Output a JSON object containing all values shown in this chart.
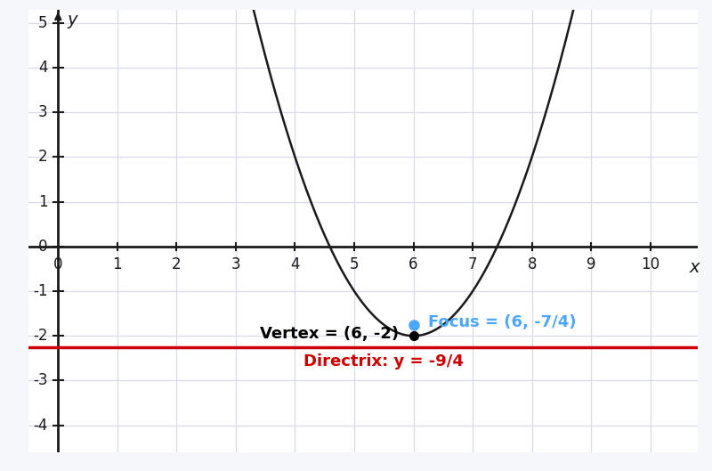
{
  "xlim": [
    -0.5,
    10.8
  ],
  "ylim": [
    -4.6,
    5.3
  ],
  "xticks": [
    1,
    2,
    3,
    4,
    5,
    6,
    7,
    8,
    9,
    10
  ],
  "yticks": [
    -4,
    -3,
    -2,
    -1,
    1,
    2,
    3,
    4,
    5
  ],
  "ytick_zero": 0,
  "xlabel": "x",
  "ylabel": "y",
  "vertex": [
    6,
    -2
  ],
  "focus": [
    6,
    -1.75
  ],
  "directrix_y": -2.25,
  "vertex_label": "Vertex = (6, -2)",
  "focus_label": "Focus = (6, -7/4)",
  "directrix_label": "Directrix: y = -9/4",
  "parabola_color": "#1a1a1a",
  "directrix_color": "#cc0000",
  "focus_color": "#4da6ff",
  "vertex_dot_color": "#000000",
  "background_color": "#f5f7fb",
  "grid_color": "#d8dce8",
  "axis_color": "#1a1a1a",
  "label_fontsize": 14,
  "annotation_fontsize": 13,
  "tick_fontsize": 12
}
